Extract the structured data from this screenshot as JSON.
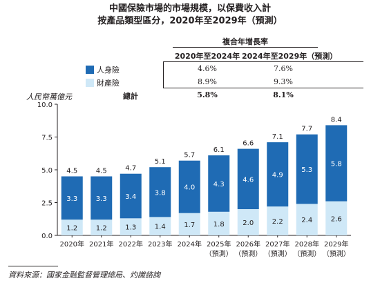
{
  "title_line1": "中國保險市場的市場規模，以保費收入計",
  "title_line2": "按產品類型區分，2020年至2029年（預測）",
  "cagr_table": {
    "heading": "複合年增長率",
    "columns": [
      "2020年至2024年",
      "2024年至2029年（預測）"
    ],
    "rows": [
      {
        "label": "人身險",
        "values": [
          "4.6%",
          "7.6%"
        ],
        "color": "#1f6bb4"
      },
      {
        "label": "財產險",
        "values": [
          "8.9%",
          "9.3%"
        ],
        "color": "#cfe8f7"
      },
      {
        "label": "總計",
        "values": [
          "5.8%",
          "8.1%"
        ]
      }
    ]
  },
  "chart_data": {
    "type": "bar",
    "stacked": true,
    "ylabel": "人民幣萬億元",
    "ylim": [
      0,
      10
    ],
    "yticks": [
      "0.0",
      "2.5",
      "5.0",
      "7.5",
      "10.0"
    ],
    "grid": false,
    "categories": [
      "2020年",
      "2021年",
      "2022年",
      "2023年",
      "2024年",
      "2025年\n（預測）",
      "2026年\n（預測）",
      "2027年\n（預測）",
      "2028年\n（預測）",
      "2029年\n（預測）"
    ],
    "series": [
      {
        "name": "財產險",
        "color": "#cfe8f7",
        "label_color": "#231f20",
        "values": [
          1.2,
          1.2,
          1.3,
          1.4,
          1.7,
          1.8,
          2.0,
          2.2,
          2.4,
          2.6
        ]
      },
      {
        "name": "人身險",
        "color": "#1f6bb4",
        "label_color": "#ffffff",
        "values": [
          3.3,
          3.3,
          3.4,
          3.8,
          4.0,
          4.3,
          4.6,
          4.9,
          5.3,
          5.8
        ]
      }
    ],
    "totals": [
      4.5,
      4.5,
      4.7,
      5.1,
      5.7,
      6.1,
      6.6,
      7.1,
      7.7,
      8.4
    ]
  },
  "source": "資料來源：國家金融監督管理總局、灼識諮詢"
}
